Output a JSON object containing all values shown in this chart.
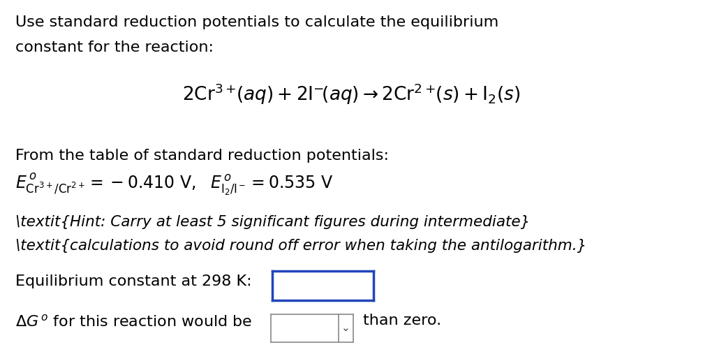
{
  "bg_color": "#ffffff",
  "text_color": "#000000",
  "blue_box_color": "#2244bb",
  "line1": "Use standard reduction potentials to calculate the equilibrium",
  "line2": "constant for the reaction:",
  "from_table": "From the table of standard reduction potentials:",
  "eq_const_label": "Equilibrium constant at 298 K:",
  "than_zero": "than zero.",
  "main_fontsize": 16,
  "eq_fontsize": 19,
  "hint_fontsize": 15.5
}
